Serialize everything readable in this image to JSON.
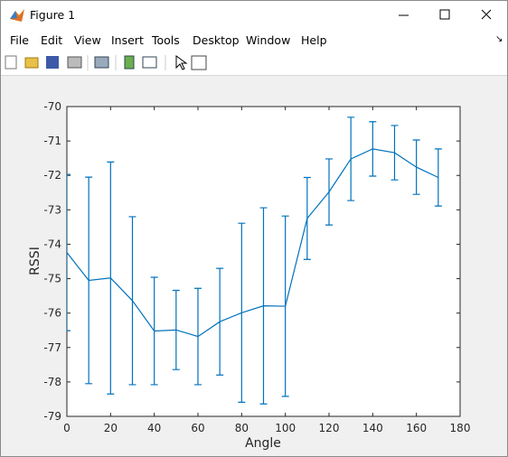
{
  "window": {
    "title": "Figure 1",
    "menu": [
      "File",
      "Edit",
      "View",
      "Insert",
      "Tools",
      "Desktop",
      "Window",
      "Help"
    ]
  },
  "chart_data": {
    "type": "errorbar",
    "xlabel": "Angle",
    "ylabel": "RSSI",
    "color": "#0072bd",
    "x": [
      0,
      10,
      20,
      30,
      40,
      50,
      60,
      70,
      80,
      90,
      100,
      110,
      120,
      130,
      140,
      150,
      160,
      170
    ],
    "values": [
      -74.24,
      -75.05,
      -74.98,
      -75.64,
      -76.52,
      -76.49,
      -76.68,
      -76.25,
      -75.99,
      -75.79,
      -75.8,
      -73.25,
      -72.48,
      -71.52,
      -71.23,
      -71.34,
      -71.76,
      -72.06
    ],
    "errors": [
      2.27,
      3.0,
      3.37,
      2.44,
      1.56,
      1.15,
      1.4,
      1.55,
      2.6,
      2.85,
      2.62,
      1.19,
      0.96,
      1.21,
      0.79,
      0.79,
      0.79,
      0.83
    ],
    "xlim": [
      0,
      180
    ],
    "xticks": [
      0,
      20,
      40,
      60,
      80,
      100,
      120,
      140,
      160,
      180
    ],
    "ylim": [
      -79,
      -70
    ],
    "yticks": [
      -70,
      -71,
      -72,
      -73,
      -74,
      -75,
      -76,
      -77,
      -78,
      -79
    ]
  }
}
